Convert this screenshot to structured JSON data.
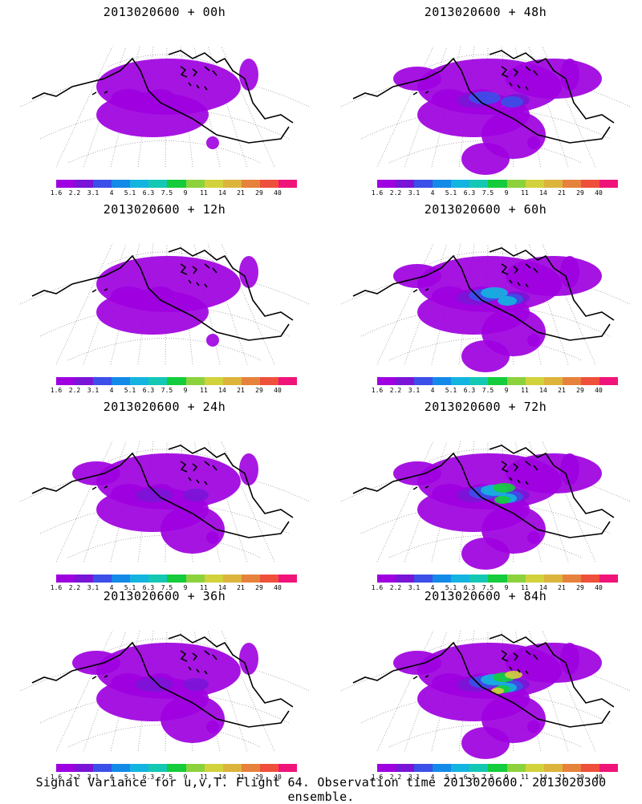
{
  "panels": [
    {
      "title": "2013020600  + 00h",
      "level": 1
    },
    {
      "title": "2013020600  + 48h",
      "level": 3
    },
    {
      "title": "2013020600  + 12h",
      "level": 1
    },
    {
      "title": "2013020600  + 60h",
      "level": 4
    },
    {
      "title": "2013020600  + 24h",
      "level": 2
    },
    {
      "title": "2013020600  + 72h",
      "level": 5
    },
    {
      "title": "2013020600  + 36h",
      "level": 2
    },
    {
      "title": "2013020600  + 84h",
      "level": 6
    }
  ],
  "colorbar": {
    "labels": [
      "1.6",
      "2.2",
      "3.1",
      "4",
      "5.1",
      "6.3",
      "7.5",
      "9",
      "11",
      "14",
      "21",
      "29",
      "40"
    ],
    "colors": [
      "#9e00e0",
      "#7a14d6",
      "#3c4fe8",
      "#148ae8",
      "#14b4e0",
      "#14c8b4",
      "#14cc3c",
      "#8cd23c",
      "#d2d23c",
      "#dcb43c",
      "#e6823c",
      "#ee503c",
      "#f0147a"
    ]
  },
  "footer": "Signal Variance for u,v,T. Flight 64. Observation time 2013020600. 2013020300 ensemble."
}
